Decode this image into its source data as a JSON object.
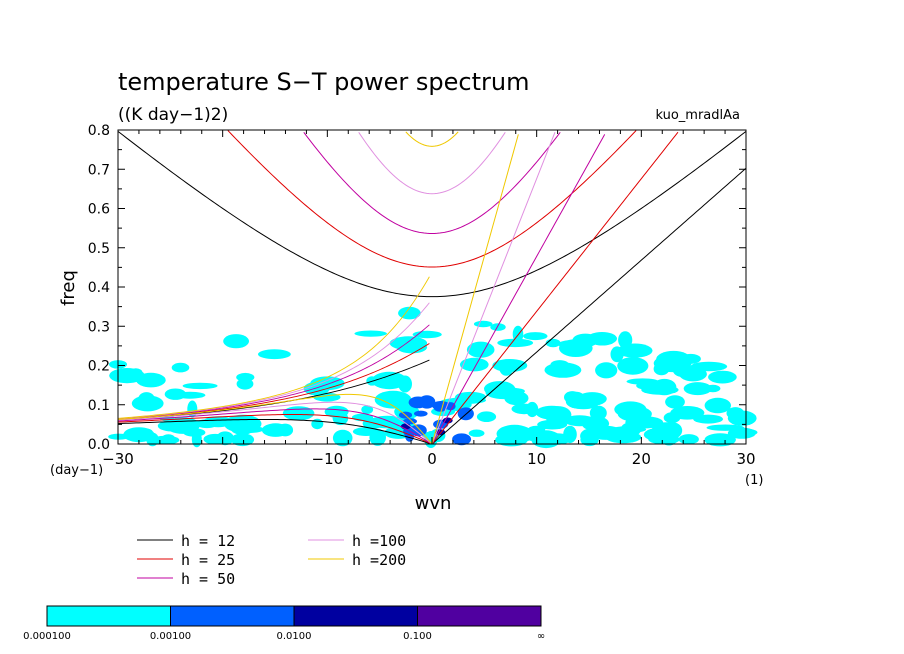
{
  "chart_data": {
    "type": "line",
    "title": "temperature S−T power spectrum",
    "subtitle": "((K day−1)2)",
    "run_label": "kuo_mradlAa",
    "xlabel": "wvn",
    "ylabel": "freq",
    "x_unit": "(1)",
    "y_unit": "(day−1)",
    "xlim": [
      -30,
      30
    ],
    "ylim": [
      0.0,
      0.8
    ],
    "xticks": [
      -30,
      -20,
      -10,
      0,
      10,
      20,
      30
    ],
    "xtick_labels": [
      "−30",
      "−20",
      "−10",
      "0",
      "10",
      "20",
      "30"
    ],
    "yticks": [
      0.0,
      0.1,
      0.2,
      0.3,
      0.4,
      0.5,
      0.6,
      0.7,
      0.8
    ],
    "ytick_labels": [
      "0.0",
      "0.1",
      "0.2",
      "0.3",
      "0.4",
      "0.5",
      "0.6",
      "0.7",
      "0.8"
    ],
    "dispersion_curves": [
      {
        "name": "h = 12",
        "color": "#000000"
      },
      {
        "name": "h = 25",
        "color": "#e00000"
      },
      {
        "name": "h = 50",
        "color": "#c000a0"
      },
      {
        "name": "h =100",
        "color": "#e090e0"
      },
      {
        "name": "h =200",
        "color": "#f0c800"
      }
    ],
    "contour_levels": {
      "colors": [
        "#00ffff",
        "#0060ff",
        "#0000a0",
        "#5000a0"
      ],
      "labels": [
        "0.000100",
        "0.00100",
        "0.0100",
        "0.100",
        "∞"
      ]
    }
  }
}
